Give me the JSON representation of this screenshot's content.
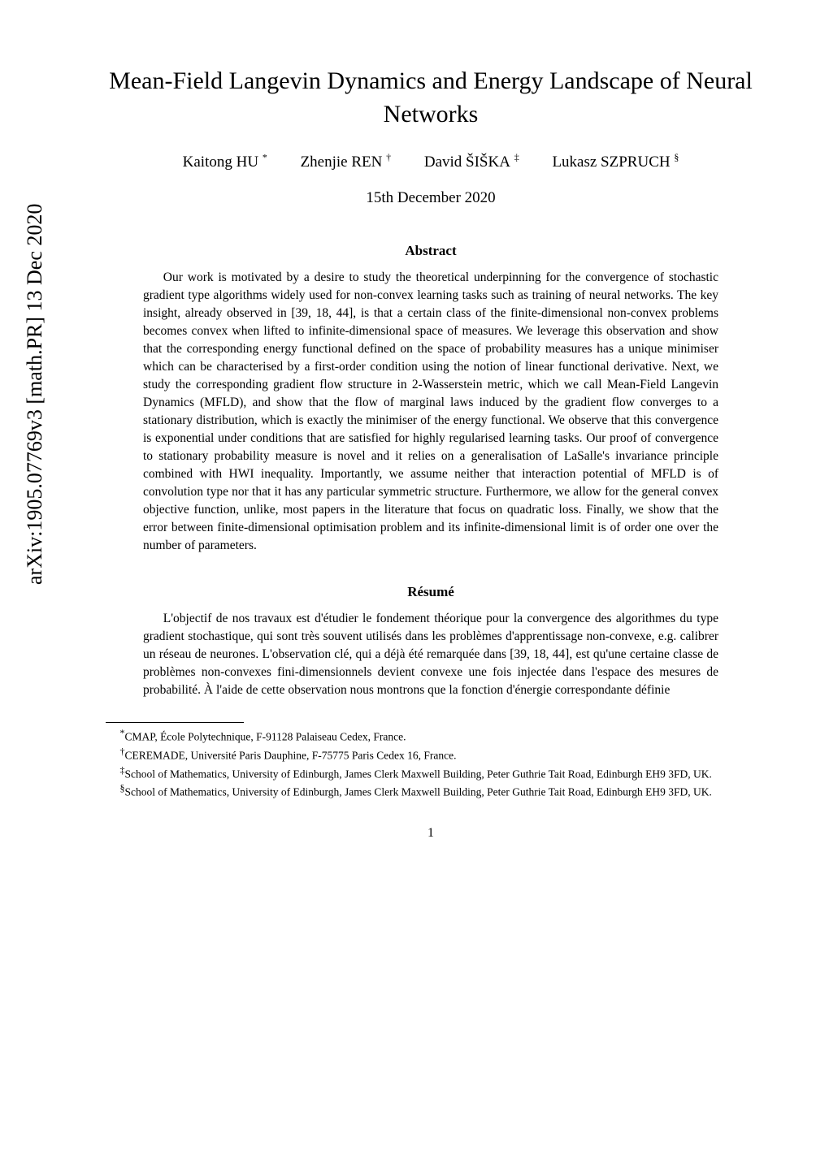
{
  "arxiv_stamp": "arXiv:1905.07769v3  [math.PR]  13 Dec 2020",
  "title": "Mean-Field Langevin Dynamics and Energy Landscape of Neural Networks",
  "authors": [
    {
      "name": "Kaitong HU",
      "marker": "*"
    },
    {
      "name": "Zhenjie REN",
      "marker": "†"
    },
    {
      "name": "David ŠIŠKA",
      "marker": "‡"
    },
    {
      "name": "Lukasz SZPRUCH",
      "marker": "§"
    }
  ],
  "date": "15th December 2020",
  "abstract_heading": "Abstract",
  "abstract_body": "Our work is motivated by a desire to study the theoretical underpinning for the convergence of stochastic gradient type algorithms widely used for non-convex learning tasks such as training of neural networks. The key insight, already observed in [39, 18, 44], is that a certain class of the finite-dimensional non-convex problems becomes convex when lifted to infinite-dimensional space of measures. We leverage this observation and show that the corresponding energy functional defined on the space of probability measures has a unique minimiser which can be characterised by a first-order condition using the notion of linear functional derivative. Next, we study the corresponding gradient flow structure in 2-Wasserstein metric, which we call Mean-Field Langevin Dynamics (MFLD), and show that the flow of marginal laws induced by the gradient flow converges to a stationary distribution, which is exactly the minimiser of the energy functional. We observe that this convergence is exponential under conditions that are satisfied for highly regularised learning tasks. Our proof of convergence to stationary probability measure is novel and it relies on a generalisation of LaSalle's invariance principle combined with HWI inequality. Importantly, we assume neither that interaction potential of MFLD is of convolution type nor that it has any particular symmetric structure. Furthermore, we allow for the general convex objective function, unlike, most papers in the literature that focus on quadratic loss. Finally, we show that the error between finite-dimensional optimisation problem and its infinite-dimensional limit is of order one over the number of parameters.",
  "resume_heading": "Résumé",
  "resume_body": "L'objectif de nos travaux est d'étudier le fondement théorique pour la convergence des algorithmes du type gradient stochastique, qui sont très souvent utilisés dans les problèmes d'apprentissage non-convexe, e.g. calibrer un réseau de neurones. L'observation clé, qui a déjà été remarquée dans [39, 18, 44], est qu'une certaine classe de problèmes non-convexes fini-dimensionnels devient convexe une fois injectée dans l'espace des mesures de probabilité. À l'aide de cette observation nous montrons que la fonction d'énergie correspondante définie",
  "footnotes": [
    {
      "marker": "*",
      "text": "CMAP, École Polytechnique, F-91128 Palaiseau Cedex, France."
    },
    {
      "marker": "†",
      "text": "CEREMADE, Université Paris Dauphine, F-75775 Paris Cedex 16, France."
    },
    {
      "marker": "‡",
      "text": "School of Mathematics, University of Edinburgh, James Clerk Maxwell Building, Peter Guthrie Tait Road, Edinburgh EH9 3FD, UK."
    },
    {
      "marker": "§",
      "text": "School of Mathematics, University of Edinburgh, James Clerk Maxwell Building, Peter Guthrie Tait Road, Edinburgh EH9 3FD, UK."
    }
  ],
  "page_number": "1"
}
